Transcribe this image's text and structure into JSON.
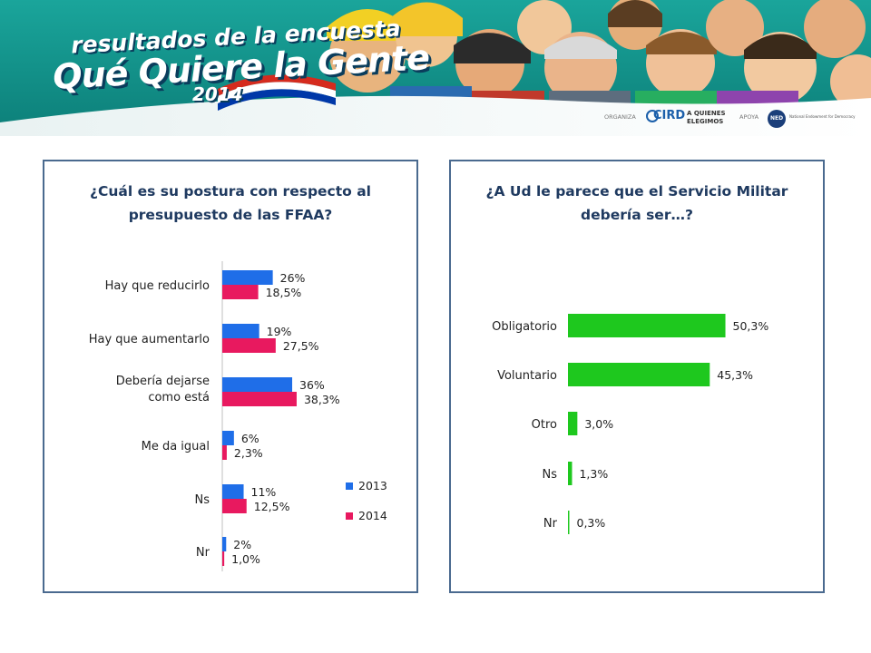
{
  "banner": {
    "title_line1": "resultados de la encuesta",
    "title_line2": "Qué Quiere la Gente",
    "year": "2014",
    "organiza_label": "ORGANIZA",
    "org1": "CIRD",
    "org2_line1": "A QUIENES",
    "org2_line2": "ELEGIMOS",
    "apoya_label": "APOYA",
    "org3": "NED",
    "org3_sub": "National Endowment for Democracy"
  },
  "chart_data": [
    {
      "type": "bar",
      "orientation": "horizontal",
      "title": "¿Cuál es su postura con respecto al presupuesto de las FFAA?",
      "categories": [
        "Hay que reducirlo",
        "Hay que aumentarlo",
        "Debería dejarse como está",
        "Me da igual",
        "Ns",
        "Nr"
      ],
      "series": [
        {
          "name": "2013",
          "color": "#1f6ee8",
          "values": [
            26,
            19,
            36,
            6,
            11,
            2
          ],
          "labels": [
            "26%",
            "19%",
            "36%",
            "6%",
            "11%",
            "2%"
          ]
        },
        {
          "name": "2014",
          "color": "#e8195f",
          "values": [
            18.5,
            27.5,
            38.3,
            2.3,
            12.5,
            1.0
          ],
          "labels": [
            "18,5%",
            "27,5%",
            "38,3%",
            "2,3%",
            "12,5%",
            "1,0%"
          ]
        }
      ],
      "legend_position": "right",
      "grid": false
    },
    {
      "type": "bar",
      "orientation": "horizontal",
      "title": "¿A Ud le parece que el Servicio Militar debería ser…?",
      "categories": [
        "Obligatorio",
        "Voluntario",
        "Otro",
        "Ns",
        "Nr"
      ],
      "series": [
        {
          "color": "#1ec81e",
          "values": [
            50.3,
            45.3,
            3.0,
            1.3,
            0.3
          ],
          "labels": [
            "50,3%",
            "45,3%",
            "3,0%",
            "1,3%",
            "0,3%"
          ]
        }
      ],
      "grid": false
    }
  ]
}
